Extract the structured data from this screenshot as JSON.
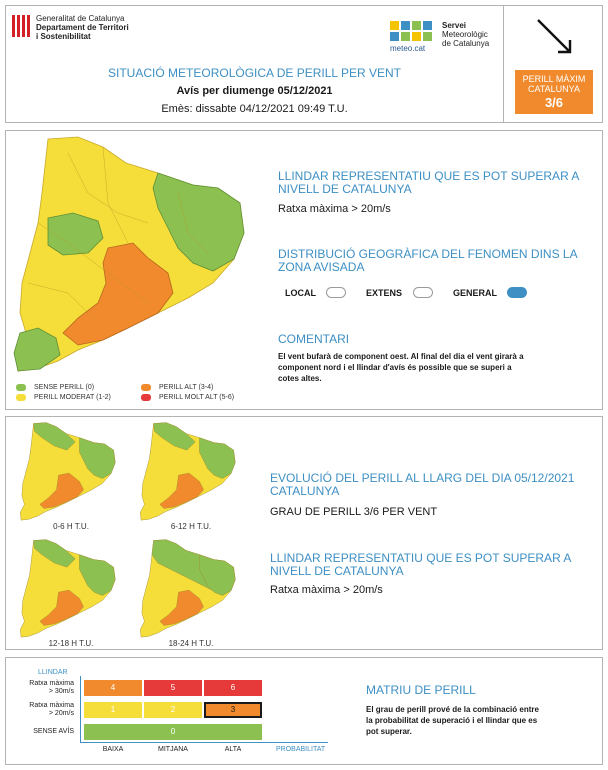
{
  "header": {
    "gen_line1": "Generalitat de Catalunya",
    "gen_line2": "Departament de Territori",
    "gen_line3": "i Sostenibilitat",
    "meteo_logo_text": "meteo.cat",
    "smc_line1": "Servei",
    "smc_line2": "Meteorològic",
    "smc_line3": "de Catalunya",
    "title": "SITUACIÓ METEOROLÒGICA DE PERILL PER VENT",
    "subtitle": "Avís per diumenge 05/12/2021",
    "issued": "Emès: dissabte 04/12/2021 09:49 T.U.",
    "max_label_1": "PERILL MÀXIM",
    "max_label_2": "CATALUNYA",
    "max_level": "3/6",
    "icons": {
      "gen": "generalitat-logo",
      "meteo": "meteocat-logo",
      "wind": "wind-direction-arrow-icon"
    }
  },
  "section1": {
    "threshold_title_1": "LLINDAR REPRESENTATIU QUE ES POT SUPERAR A",
    "threshold_title_2": "NIVELL DE CATALUNYA",
    "threshold_value": "Ratxa màxima > 20m/s",
    "dist_title_1": "DISTRIBUCIÓ GEOGRÀFICA DEL FENOMEN DINS LA",
    "dist_title_2": "ZONA AVISADA",
    "toggles": [
      {
        "label": "LOCAL",
        "on": false
      },
      {
        "label": "EXTENS",
        "on": false
      },
      {
        "label": "GENERAL",
        "on": true
      }
    ],
    "comments_title": "COMENTARI",
    "comments_1": "El vent bufarà de component oest. Al final del dia el vent girarà a",
    "comments_2": "component nord i el llindar d'avís és possible que se superi a",
    "comments_3": "cotes altes.",
    "legend": [
      {
        "label": "SENSE PERILL (0)",
        "color": "#8cc152"
      },
      {
        "label": "PERILL MODERAT (1-2)",
        "color": "#f5dd3a"
      },
      {
        "label": "PERILL ALT (3-4)",
        "color": "#f08a2c"
      },
      {
        "label": "PERILL MOLT ALT (5-6)",
        "color": "#e63a3a"
      }
    ]
  },
  "section2": {
    "maps": [
      {
        "label": "0-6 H T.U."
      },
      {
        "label": "6-12 H T.U."
      },
      {
        "label": "12-18 H T.U."
      },
      {
        "label": "18-24 H T.U."
      }
    ],
    "evol_title_1": "EVOLUCIÓ DEL PERILL AL LLARG DEL DIA 05/12/2021",
    "evol_title_2": "CATALUNYA",
    "evol_value": "GRAU DE PERILL 3/6 PER VENT",
    "threshold_title_1": "LLINDAR REPRESENTATIU QUE ES POT SUPERAR A",
    "threshold_title_2": "NIVELL DE CATALUNYA",
    "threshold_value": "Ratxa màxima > 20m/s"
  },
  "matrix": {
    "title": "MATRIU DE PERILL",
    "axis_y": "LLINDAR",
    "axis_x": "PROBABILITAT",
    "rows": [
      {
        "label_1": "Ratxa màxima",
        "label_2": "> 30m/s",
        "cells": [
          "4",
          "5",
          "6"
        ]
      },
      {
        "label_1": "Ratxa màxima",
        "label_2": "> 20m/s",
        "cells": [
          "1",
          "2",
          "3"
        ]
      },
      {
        "label_1": "SENSE AVÍS",
        "label_2": "",
        "cells": [
          "0"
        ]
      }
    ],
    "cols": [
      "BAIXA",
      "MITJANA",
      "ALTA"
    ],
    "desc_1": "El grau de perill prové de la combinació entre",
    "desc_2": "la probabilitat de superació i el llindar que es",
    "desc_3": "pot superar.",
    "colors": {
      "green": "#8cc152",
      "yellow": "#f5dd3a",
      "orange": "#f08a2c",
      "red": "#e63a3a"
    }
  }
}
